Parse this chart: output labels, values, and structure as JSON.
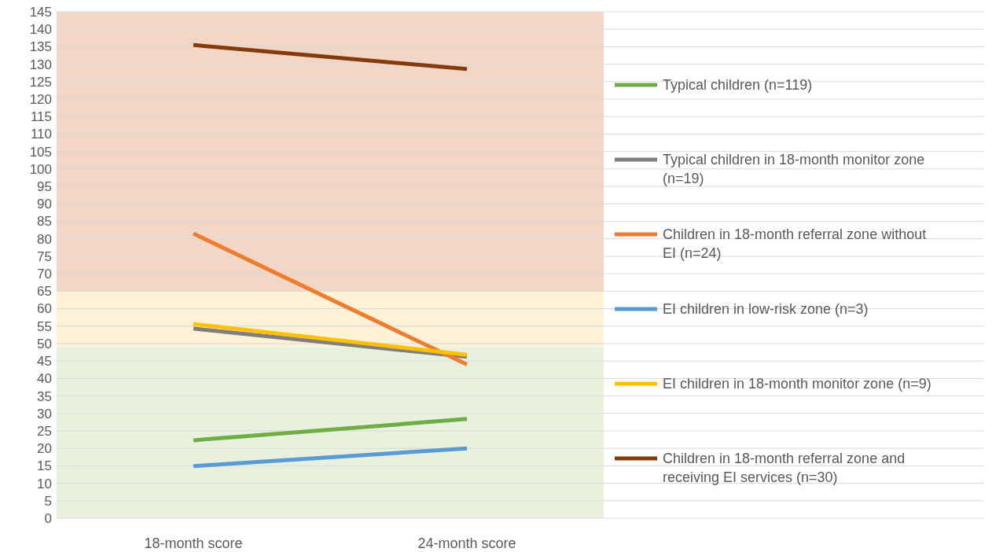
{
  "chart_data": {
    "type": "line",
    "categories": [
      "18-month score",
      "24-month score"
    ],
    "ylim": [
      0,
      145
    ],
    "yticks": [
      0,
      5,
      10,
      15,
      20,
      25,
      30,
      35,
      40,
      45,
      50,
      55,
      60,
      65,
      70,
      75,
      80,
      85,
      90,
      95,
      100,
      105,
      110,
      115,
      120,
      125,
      130,
      135,
      140,
      145
    ],
    "grid": "y",
    "legend": "right",
    "marker": "none",
    "line_style": "solid",
    "bands": [
      {
        "axis": "y",
        "from": 0,
        "to": 49,
        "color": "#e8f1de"
      },
      {
        "axis": "y",
        "from": 49,
        "to": 65,
        "color": "#fdf2d5"
      },
      {
        "axis": "y",
        "from": 65,
        "to": 145,
        "color": "#f2d6c6"
      }
    ],
    "series": [
      {
        "name": "Typical children (n=119)",
        "color": "#70ad47",
        "values": [
          22.3,
          28.4
        ]
      },
      {
        "name": "Typical children in 18-month monitor zone (n=19)",
        "color": "#7f7f7f",
        "values": [
          54.3,
          46.2
        ]
      },
      {
        "name": "Children in 18-month referral zone without EI (n=24)",
        "color": "#ed7d31",
        "values": [
          81.5,
          44
        ]
      },
      {
        "name": "EI children in low-risk zone (n=3)",
        "color": "#5b9bd5",
        "values": [
          14.9,
          20
        ]
      },
      {
        "name": "EI children in 18-month monitor zone (n=9)",
        "color": "#ffc000",
        "values": [
          55.6,
          46.8
        ]
      },
      {
        "name": "Children in 18-month referral zone and receiving EI services (n=30)",
        "color": "#843c0c",
        "values": [
          135.5,
          128.6
        ]
      }
    ]
  }
}
